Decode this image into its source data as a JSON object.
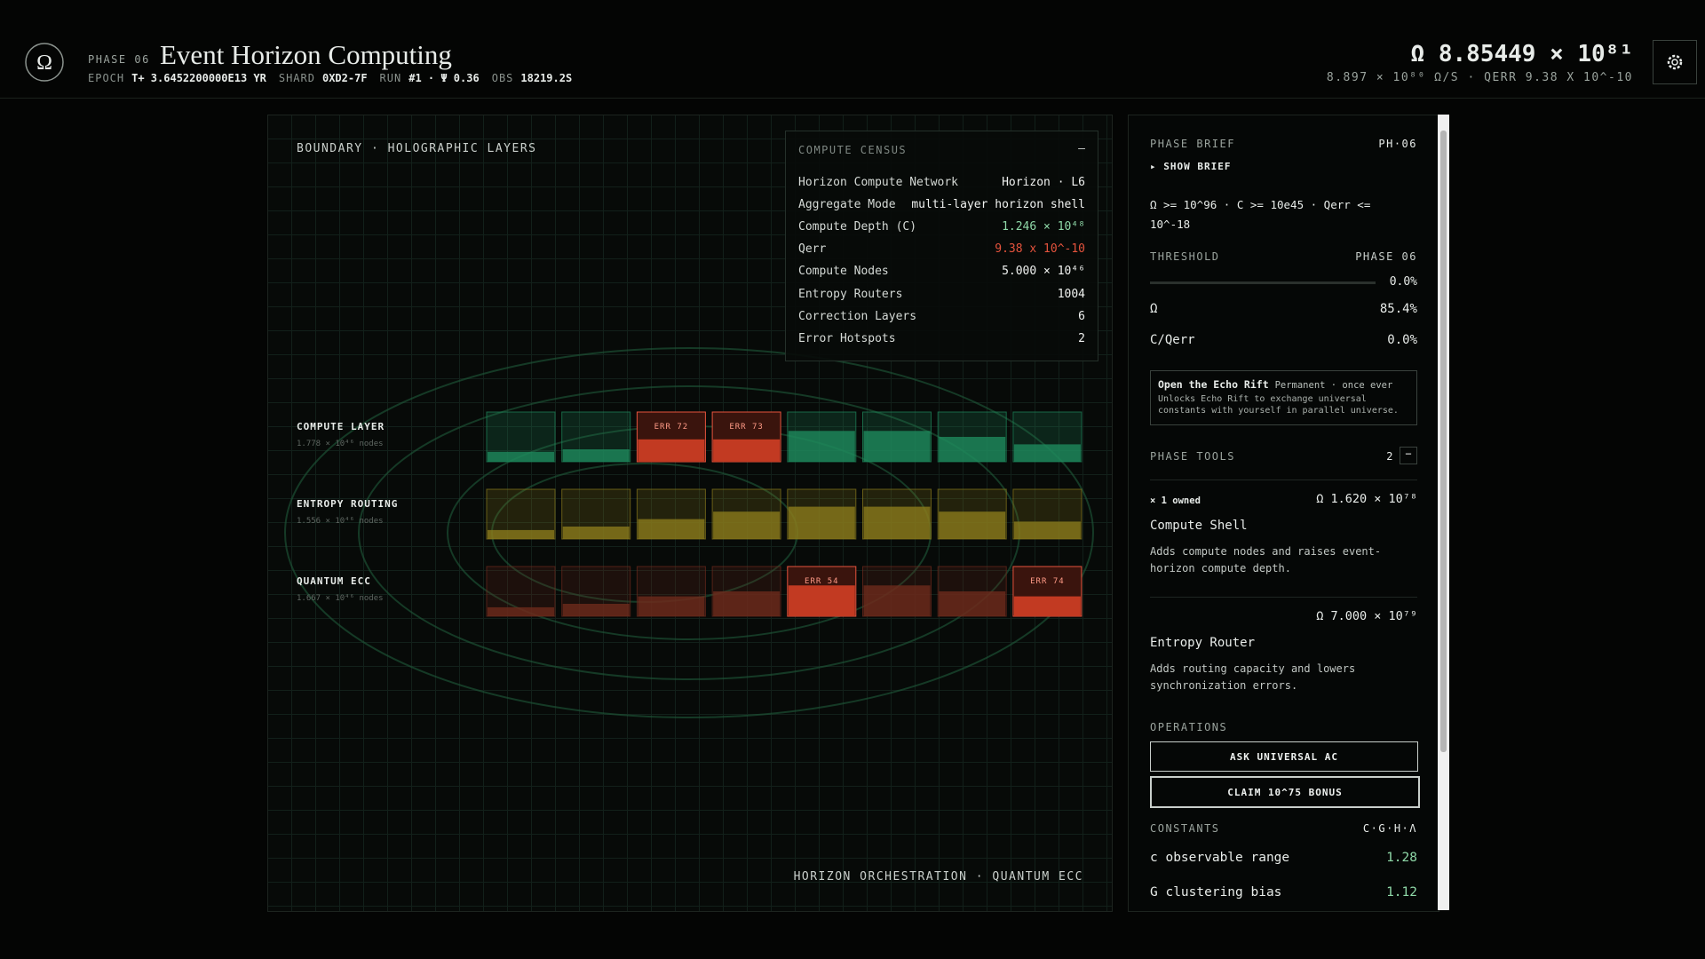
{
  "header": {
    "phase": "PHASE 06",
    "title": "Event Horizon Computing",
    "stats": [
      {
        "label": "EPOCH",
        "value": "T+ 3.6452200000E13 YR"
      },
      {
        "label": "SHARD",
        "value": "0XD2-7F"
      },
      {
        "label": "RUN",
        "value": "#1 · Ψ 0.36"
      },
      {
        "label": "OBS",
        "value": "18219.2S"
      }
    ],
    "omega": "Ω 8.85449 × 10⁸¹",
    "rate": "8.897 × 10⁸⁰ Ω/S · QERR 9.38 X 10^-10"
  },
  "boundary": {
    "title": "BOUNDARY · HOLOGRAPHIC LAYERS",
    "footer": "HORIZON ORCHESTRATION · QUANTUM ECC",
    "census": {
      "title": "COMPUTE CENSUS",
      "toggle": "—",
      "rows": [
        {
          "label": "Horizon Compute Network",
          "value": "Horizon · L6"
        },
        {
          "label": "Aggregate Mode",
          "value": "multi-layer horizon shell"
        },
        {
          "label": "Compute Depth (C)",
          "value": "1.246 × 10⁴⁸",
          "color": "#8fd9a8"
        },
        {
          "label": "Qerr",
          "value": "9.38 x 10^-10",
          "color": "#e5533d"
        },
        {
          "label": "Compute Nodes",
          "value": "5.000 × 10⁴⁶"
        },
        {
          "label": "Entropy Routers",
          "value": "1004"
        },
        {
          "label": "Correction Layers",
          "value": "6"
        },
        {
          "label": "Error Hotspots",
          "value": "2"
        }
      ]
    },
    "layers": [
      {
        "name": "COMPUTE LAYER",
        "nodes": "1.778 × 10⁴⁶ nodes",
        "color": "#1e8a5c",
        "cells": [
          {
            "fill": 20
          },
          {
            "fill": 25
          },
          {
            "fill": 45,
            "error": "ERR 72"
          },
          {
            "fill": 45,
            "error": "ERR 73"
          },
          {
            "fill": 62
          },
          {
            "fill": 62
          },
          {
            "fill": 50
          },
          {
            "fill": 35
          }
        ]
      },
      {
        "name": "ENTROPY ROUTING",
        "nodes": "1.556 × 10⁴⁶ nodes",
        "color": "#8a7a1c",
        "cells": [
          {
            "fill": 18
          },
          {
            "fill": 25
          },
          {
            "fill": 40
          },
          {
            "fill": 55
          },
          {
            "fill": 65
          },
          {
            "fill": 65
          },
          {
            "fill": 55
          },
          {
            "fill": 35
          }
        ]
      },
      {
        "name": "QUANTUM ECC",
        "nodes": "1.667 × 10⁴⁶ nodes",
        "color": "#6e2a1c",
        "cells": [
          {
            "fill": 18
          },
          {
            "fill": 25
          },
          {
            "fill": 40
          },
          {
            "fill": 50
          },
          {
            "fill": 62,
            "error": "ERR 54"
          },
          {
            "fill": 62
          },
          {
            "fill": 50
          },
          {
            "fill": 40,
            "error": "ERR 74"
          }
        ]
      }
    ]
  },
  "sidebar": {
    "brief": {
      "title": "PHASE BRIEF",
      "code": "PH·06",
      "toggle": "SHOW BRIEF",
      "requirement": "Ω >= 10^96 · C >= 10e45 · Qerr <= 10^-18"
    },
    "threshold": {
      "title": "THRESHOLD",
      "phase": "PHASE 06",
      "progress": "0.0%",
      "rows": [
        {
          "label": "Ω",
          "value": "85.4%"
        },
        {
          "label": "C/Qerr",
          "value": "0.0%"
        }
      ]
    },
    "rift": {
      "title": "Open the Echo Rift",
      "tag": "Permanent · once ever",
      "text": "Unlocks Echo Rift to exchange universal constants with yourself in parallel universe."
    },
    "tools": {
      "title": "PHASE TOOLS",
      "count": "2",
      "toggle": "−",
      "items": [
        {
          "owned": "× 1 owned",
          "cost": "Ω 1.620 × 10⁷⁸",
          "name": "Compute Shell",
          "text": "Adds compute nodes and raises event-horizon compute depth."
        },
        {
          "cost": "Ω 7.000 × 10⁷⁹",
          "name": "Entropy Router",
          "text": "Adds routing capacity and lowers synchronization errors."
        }
      ]
    },
    "operations": {
      "title": "OPERATIONS",
      "buttons": [
        "ASK UNIVERSAL AC",
        "CLAIM 10^75 BONUS"
      ]
    },
    "constants": {
      "title": "CONSTANTS",
      "code": "C·G·H·Λ",
      "rows": [
        {
          "label": "c observable range",
          "value": "1.28"
        },
        {
          "label": "G clustering bias",
          "value": "1.12"
        }
      ]
    }
  }
}
